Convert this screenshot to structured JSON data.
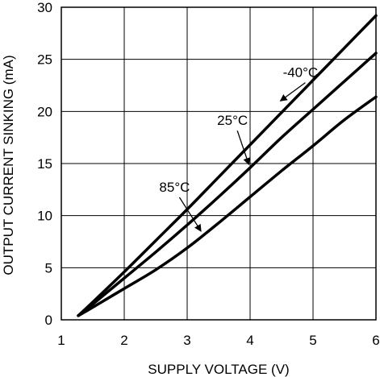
{
  "chart_data": {
    "type": "line",
    "title": "",
    "xlabel": "SUPPLY VOLTAGE (V)",
    "ylabel": "OUTPUT CURRENT SINKING (mA)",
    "xlim": [
      1,
      6
    ],
    "ylim": [
      0,
      30
    ],
    "x_ticks": [
      1,
      2,
      3,
      4,
      5,
      6
    ],
    "y_ticks": [
      0,
      5,
      10,
      15,
      20,
      25,
      30
    ],
    "x_tick_labels": [
      "1",
      "2",
      "3",
      "4",
      "5",
      "6"
    ],
    "y_tick_labels": [
      "0",
      "5",
      "10",
      "15",
      "20",
      "25",
      "30"
    ],
    "grid": true,
    "legend": "none",
    "line_color": "#000000",
    "series": [
      {
        "name": "-40°C",
        "x": [
          1.27,
          1.5,
          2,
          2.5,
          3,
          3.5,
          4,
          4.5,
          5,
          5.5,
          6
        ],
        "y": [
          0.4,
          1.7,
          4.6,
          7.6,
          10.6,
          13.7,
          16.8,
          19.9,
          23.0,
          26.1,
          29.2
        ]
      },
      {
        "name": "25°C",
        "x": [
          1.27,
          1.5,
          2,
          2.5,
          3,
          3.5,
          4,
          4.5,
          5,
          5.5,
          6
        ],
        "y": [
          0.4,
          1.5,
          4.0,
          6.5,
          9.1,
          11.8,
          14.6,
          17.5,
          20.2,
          22.9,
          25.6
        ]
      },
      {
        "name": "85°C",
        "x": [
          1.27,
          1.5,
          2,
          2.5,
          3,
          3.5,
          4,
          4.5,
          5,
          5.5,
          6
        ],
        "y": [
          0.4,
          1.2,
          3.0,
          4.8,
          6.9,
          9.3,
          11.8,
          14.3,
          16.7,
          19.2,
          21.4
        ]
      }
    ],
    "annotations": [
      {
        "text": "-40°C",
        "series": "-40°C",
        "text_x": 4.8,
        "text_y": 23.3,
        "point_x": 4.48,
        "point_y": 21.0
      },
      {
        "text": "25°C",
        "series": "25°C",
        "text_x": 3.72,
        "text_y": 18.7,
        "point_x": 3.98,
        "point_y": 14.9
      },
      {
        "text": "85°C",
        "series": "85°C",
        "text_x": 2.8,
        "text_y": 12.3,
        "point_x": 3.22,
        "point_y": 8.5
      }
    ]
  }
}
